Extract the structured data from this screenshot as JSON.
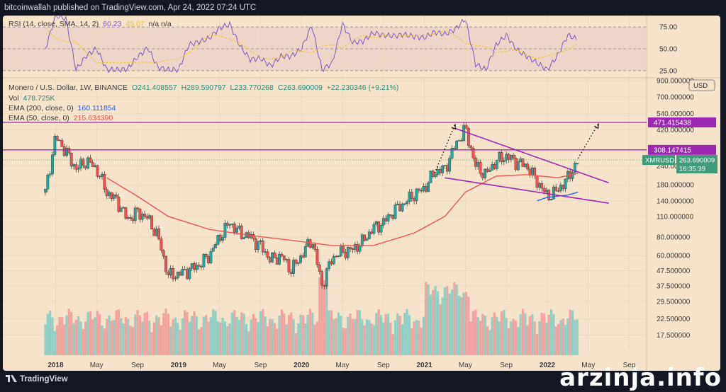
{
  "header": {
    "published": "bitcoinwallah published on TradingView.com, Apr 24, 2022 07:24 UTC"
  },
  "footer": {
    "brand": "TradingView",
    "watermark": "arzinja.info"
  },
  "rsi": {
    "label": "RSI (14, close, SMA, 14, 2)",
    "value": "60.23",
    "sma_value": "49.07",
    "extra": "n/a  n/a",
    "levels": [
      "75.00",
      "50.00",
      "25.00"
    ],
    "line_color": "#7e57c2",
    "sma_color": "#f0c419"
  },
  "main_legend": {
    "symbol": "Monero / U.S. Dollar, 1W, BINANCE",
    "o": "O241.408557",
    "h": "H289.590797",
    "l": "L233.770268",
    "c": "C263.690009",
    "change": "+22.230346 (+9.21%)",
    "vol_label": "Vol",
    "vol_value": "478.725K",
    "ema200_label": "EMA (200, close, 0)",
    "ema200_value": "160.111854",
    "ema50_label": "EMA (50, close, 0)",
    "ema50_value": "215.634390"
  },
  "price_axis": {
    "scale": "USD",
    "badges": {
      "resistance_top": "471.415438",
      "resistance_mid": "308.147415",
      "symbol": "XMRUSD",
      "last_price": "263.690009",
      "countdown": "16:35:39"
    }
  },
  "colors": {
    "up": "#26a69a",
    "down": "#ef5350",
    "ema50": "#ef5350",
    "ema200": "#2962ff",
    "purple": "#9c27b0",
    "bg": "#f6e3cc"
  },
  "chart_data": {
    "type": "candlestick",
    "title": "Monero / U.S. Dollar, 1W, BINANCE",
    "y_scale": "log",
    "ylim": [
      14,
      900
    ],
    "y_ticks": [
      900,
      700,
      540,
      420,
      300,
      240,
      180,
      140,
      110,
      80,
      60,
      47.5,
      37.5,
      29.5,
      22.5,
      17.5
    ],
    "y_tick_labels": [
      "900.000000",
      "700.000000",
      "540.000000",
      "420.000000",
      "300.000000",
      "240.000000",
      "180.000000",
      "140.000000",
      "110.000000",
      "80.000000",
      "60.000000",
      "47.500000",
      "37.500000",
      "29.500000",
      "22.500000",
      "17.500000"
    ],
    "x_tick_labels": [
      "2018",
      "May",
      "Sep",
      "2019",
      "May",
      "Sep",
      "2020",
      "May",
      "Sep",
      "2021",
      "May",
      "Sep",
      "2022",
      "May",
      "Sep"
    ],
    "x_tick_dates": [
      "2018-01",
      "2018-05",
      "2018-09",
      "2019-01",
      "2019-05",
      "2019-09",
      "2020-01",
      "2020-05",
      "2020-09",
      "2021-01",
      "2021-05",
      "2021-09",
      "2022-01",
      "2022-05",
      "2022-09"
    ],
    "close_path": [
      [
        "2017-12",
        160
      ],
      [
        "2018-01",
        380
      ],
      [
        "2018-02",
        300
      ],
      [
        "2018-03",
        230
      ],
      [
        "2018-04",
        260
      ],
      [
        "2018-05",
        230
      ],
      [
        "2018-06",
        160
      ],
      [
        "2018-07",
        140
      ],
      [
        "2018-08",
        105
      ],
      [
        "2018-09",
        118
      ],
      [
        "2018-10",
        107
      ],
      [
        "2018-11",
        80
      ],
      [
        "2018-12",
        44
      ],
      [
        "2019-01",
        45
      ],
      [
        "2019-02",
        48
      ],
      [
        "2019-03",
        52
      ],
      [
        "2019-04",
        60
      ],
      [
        "2019-05",
        80
      ],
      [
        "2019-06",
        100
      ],
      [
        "2019-07",
        85
      ],
      [
        "2019-08",
        80
      ],
      [
        "2019-09",
        70
      ],
      [
        "2019-10",
        56
      ],
      [
        "2019-11",
        60
      ],
      [
        "2019-12",
        48
      ],
      [
        "2020-01",
        60
      ],
      [
        "2020-02",
        78
      ],
      [
        "2020-03",
        38
      ],
      [
        "2020-04",
        58
      ],
      [
        "2020-05",
        64
      ],
      [
        "2020-06",
        66
      ],
      [
        "2020-07",
        75
      ],
      [
        "2020-08",
        92
      ],
      [
        "2020-09",
        100
      ],
      [
        "2020-10",
        120
      ],
      [
        "2020-11",
        135
      ],
      [
        "2020-12",
        155
      ],
      [
        "2021-01",
        170
      ],
      [
        "2021-02",
        220
      ],
      [
        "2021-03",
        230
      ],
      [
        "2021-04",
        330
      ],
      [
        "2021-05",
        430
      ],
      [
        "2021-06",
        240
      ],
      [
        "2021-07",
        210
      ],
      [
        "2021-08",
        260
      ],
      [
        "2021-09",
        280
      ],
      [
        "2021-10",
        255
      ],
      [
        "2021-11",
        240
      ],
      [
        "2021-12",
        190
      ],
      [
        "2022-01",
        150
      ],
      [
        "2022-02",
        165
      ],
      [
        "2022-03",
        200
      ],
      [
        "2022-04",
        264
      ]
    ],
    "ema50": [
      [
        "2018-06",
        200
      ],
      [
        "2018-09",
        150
      ],
      [
        "2018-12",
        110
      ],
      [
        "2019-04",
        90
      ],
      [
        "2019-08",
        82
      ],
      [
        "2019-12",
        76
      ],
      [
        "2020-04",
        70
      ],
      [
        "2020-08",
        70
      ],
      [
        "2020-12",
        85
      ],
      [
        "2021-03",
        110
      ],
      [
        "2021-05",
        160
      ],
      [
        "2021-08",
        205
      ],
      [
        "2021-11",
        210
      ],
      [
        "2022-02",
        200
      ],
      [
        "2022-04",
        215
      ]
    ],
    "ema200": [
      [
        "2021-12",
        140
      ],
      [
        "2022-01",
        148
      ],
      [
        "2022-03",
        153
      ],
      [
        "2022-04",
        160
      ]
    ],
    "horizontal_levels": [
      471.415438,
      308.147415
    ],
    "rsi_last": 60.23,
    "volume_note": "weekly volume histogram, colored by candle direction",
    "annotations": [
      "falling wedge drawn in purple",
      "dotted arrow projections to 471.415438"
    ]
  }
}
